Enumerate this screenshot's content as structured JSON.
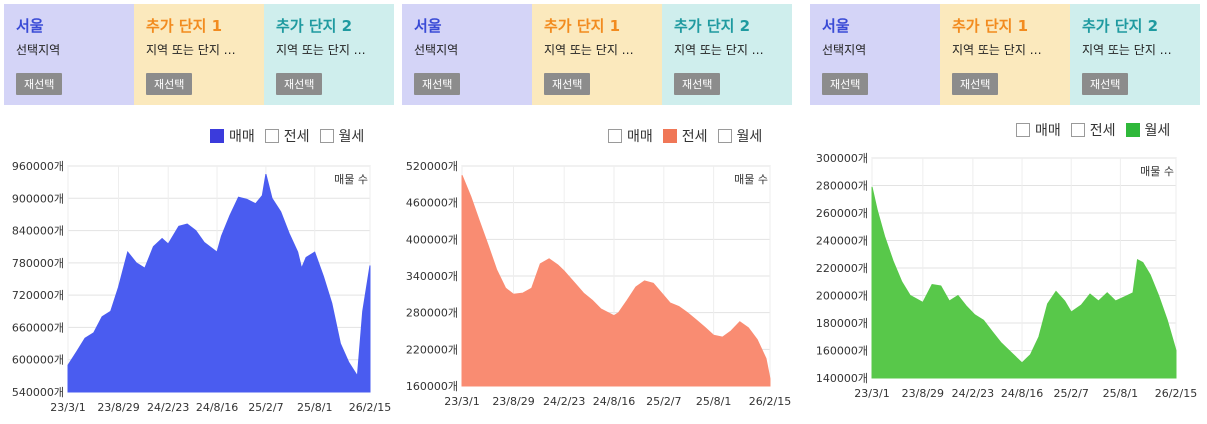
{
  "panels": [
    {
      "header": [
        {
          "title": "서울",
          "subtitle": "선택지역",
          "button": "재선택"
        },
        {
          "title": "추가 단지 1",
          "subtitle": "지역 또는 단지 …",
          "button": "재선택"
        },
        {
          "title": "추가 단지 2",
          "subtitle": "지역 또는 단지 …",
          "button": "재선택"
        }
      ],
      "legend": [
        {
          "label": "매매",
          "checked": true,
          "color": "#3b3bdc"
        },
        {
          "label": "전세",
          "checked": false,
          "color": "#ffffff"
        },
        {
          "label": "월세",
          "checked": false,
          "color": "#ffffff"
        }
      ]
    },
    {
      "header": [
        {
          "title": "서울",
          "subtitle": "선택지역",
          "button": "재선택"
        },
        {
          "title": "추가 단지 1",
          "subtitle": "지역 또는 단지 …",
          "button": "재선택"
        },
        {
          "title": "추가 단지 2",
          "subtitle": "지역 또는 단지 …",
          "button": "재선택"
        }
      ],
      "legend": [
        {
          "label": "매매",
          "checked": false,
          "color": "#ffffff"
        },
        {
          "label": "전세",
          "checked": true,
          "color": "#f07757"
        },
        {
          "label": "월세",
          "checked": false,
          "color": "#ffffff"
        }
      ]
    },
    {
      "header": [
        {
          "title": "서울",
          "subtitle": "선택지역",
          "button": "재선택"
        },
        {
          "title": "추가 단지 1",
          "subtitle": "지역 또는 단지 …",
          "button": "재선택"
        },
        {
          "title": "추가 단지 2",
          "subtitle": "지역 또는 단지 …",
          "button": "재선택"
        }
      ],
      "legend": [
        {
          "label": "매매",
          "checked": false,
          "color": "#ffffff"
        },
        {
          "label": "전세",
          "checked": false,
          "color": "#ffffff"
        },
        {
          "label": "월세",
          "checked": true,
          "color": "#2fb83a"
        }
      ]
    }
  ],
  "chart_data": [
    {
      "type": "area",
      "annotation": "매물 수",
      "color": "#4a5cf0",
      "ylim": [
        540000,
        960000
      ],
      "y_ticks": [
        540000,
        600000,
        660000,
        720000,
        780000,
        840000,
        900000,
        960000
      ],
      "y_tick_labels": [
        "540000개",
        "600000개",
        "660000개",
        "720000개",
        "780000개",
        "840000개",
        "900000개",
        "960000개"
      ],
      "x_ticks": [
        "23/3/1",
        "23/8/29",
        "24/2/23",
        "24/8/16",
        "25/2/7",
        "25/8/1",
        "26/2/15"
      ],
      "grid": true,
      "series": [
        {
          "x": [
            "23/3/1",
            "23/4/1",
            "23/5/1",
            "23/6/1",
            "23/7/1",
            "23/8/1",
            "23/8/29",
            "23/10/1",
            "23/11/1",
            "23/12/1",
            "24/1/1",
            "24/2/1",
            "24/2/23",
            "24/4/1",
            "24/5/1",
            "24/6/1",
            "24/7/1",
            "24/8/16",
            "24/9/1",
            "24/10/1",
            "24/11/1",
            "24/12/1",
            "25/1/1",
            "25/1/25",
            "25/2/7",
            "25/3/1",
            "25/4/1",
            "25/5/1",
            "25/6/1",
            "25/6/15",
            "25/7/1",
            "25/8/1",
            "25/9/1",
            "25/10/1",
            "25/11/1",
            "25/12/1",
            "26/1/1",
            "26/1/20",
            "26/2/15"
          ],
          "y": [
            590000,
            615000,
            640000,
            650000,
            680000,
            690000,
            735000,
            800000,
            780000,
            770000,
            810000,
            825000,
            815000,
            848000,
            852000,
            840000,
            818000,
            800000,
            830000,
            868000,
            902000,
            898000,
            890000,
            905000,
            945000,
            900000,
            875000,
            835000,
            800000,
            770000,
            790000,
            800000,
            755000,
            705000,
            630000,
            595000,
            570000,
            690000,
            775000
          ]
        }
      ]
    },
    {
      "type": "area",
      "annotation": "매물 수",
      "color": "#f98c72",
      "ylim": [
        160000,
        520000
      ],
      "y_ticks": [
        160000,
        220000,
        280000,
        340000,
        400000,
        460000,
        520000
      ],
      "y_tick_labels": [
        "160000개",
        "220000개",
        "280000개",
        "340000개",
        "400000개",
        "460000개",
        "520000개"
      ],
      "x_ticks": [
        "23/3/1",
        "23/8/29",
        "24/2/23",
        "24/8/16",
        "25/2/7",
        "25/8/1",
        "26/2/15"
      ],
      "grid": true,
      "series": [
        {
          "x": [
            "23/3/1",
            "23/4/1",
            "23/5/1",
            "23/6/1",
            "23/7/1",
            "23/8/1",
            "23/8/29",
            "23/10/1",
            "23/11/1",
            "23/12/1",
            "24/1/1",
            "24/2/1",
            "24/2/23",
            "24/4/1",
            "24/5/1",
            "24/6/1",
            "24/7/1",
            "24/8/16",
            "24/9/1",
            "24/10/1",
            "24/11/1",
            "24/12/1",
            "25/1/1",
            "25/2/7",
            "25/3/1",
            "25/4/1",
            "25/5/1",
            "25/6/1",
            "25/7/1",
            "25/8/1",
            "25/9/1",
            "25/10/1",
            "25/11/1",
            "25/12/1",
            "26/1/1",
            "26/2/1",
            "26/2/15"
          ],
          "y": [
            505000,
            470000,
            430000,
            390000,
            350000,
            320000,
            310000,
            312000,
            320000,
            360000,
            368000,
            358000,
            348000,
            328000,
            312000,
            300000,
            286000,
            275000,
            280000,
            300000,
            322000,
            332000,
            328000,
            308000,
            296000,
            290000,
            280000,
            268000,
            256000,
            243000,
            240000,
            250000,
            265000,
            255000,
            236000,
            205000,
            172000
          ]
        }
      ]
    },
    {
      "type": "area",
      "annotation": "매물 수",
      "color": "#58c84a",
      "ylim": [
        140000,
        300000
      ],
      "y_ticks": [
        140000,
        160000,
        180000,
        200000,
        220000,
        240000,
        260000,
        280000,
        300000
      ],
      "y_tick_labels": [
        "140000개",
        "160000개",
        "180000개",
        "200000개",
        "220000개",
        "240000개",
        "260000개",
        "280000개",
        "300000개"
      ],
      "x_ticks": [
        "23/3/1",
        "23/8/29",
        "24/2/23",
        "24/8/16",
        "25/2/7",
        "25/8/1",
        "26/2/15"
      ],
      "grid": true,
      "series": [
        {
          "x": [
            "23/3/1",
            "23/3/20",
            "23/4/15",
            "23/5/15",
            "23/6/15",
            "23/7/15",
            "23/8/29",
            "23/10/1",
            "23/11/1",
            "23/12/1",
            "24/1/1",
            "24/2/1",
            "24/3/1",
            "24/4/1",
            "24/5/1",
            "24/6/1",
            "24/7/1",
            "24/8/16",
            "24/9/15",
            "24/10/15",
            "24/11/15",
            "24/12/15",
            "25/1/15",
            "25/2/7",
            "25/3/15",
            "25/4/15",
            "25/5/15",
            "25/6/15",
            "25/7/15",
            "25/8/15",
            "25/9/15",
            "25/10/1",
            "25/10/20",
            "25/11/15",
            "25/12/15",
            "26/1/15",
            "26/2/15"
          ],
          "y": [
            279000,
            262000,
            243000,
            225000,
            210000,
            200000,
            195000,
            208000,
            207000,
            196000,
            200000,
            192000,
            186000,
            182000,
            174000,
            166000,
            160000,
            151000,
            157000,
            170000,
            194000,
            203000,
            196000,
            188000,
            193000,
            201000,
            196000,
            202000,
            196000,
            199000,
            202000,
            226000,
            224000,
            215000,
            200000,
            182000,
            160000
          ]
        }
      ]
    }
  ]
}
